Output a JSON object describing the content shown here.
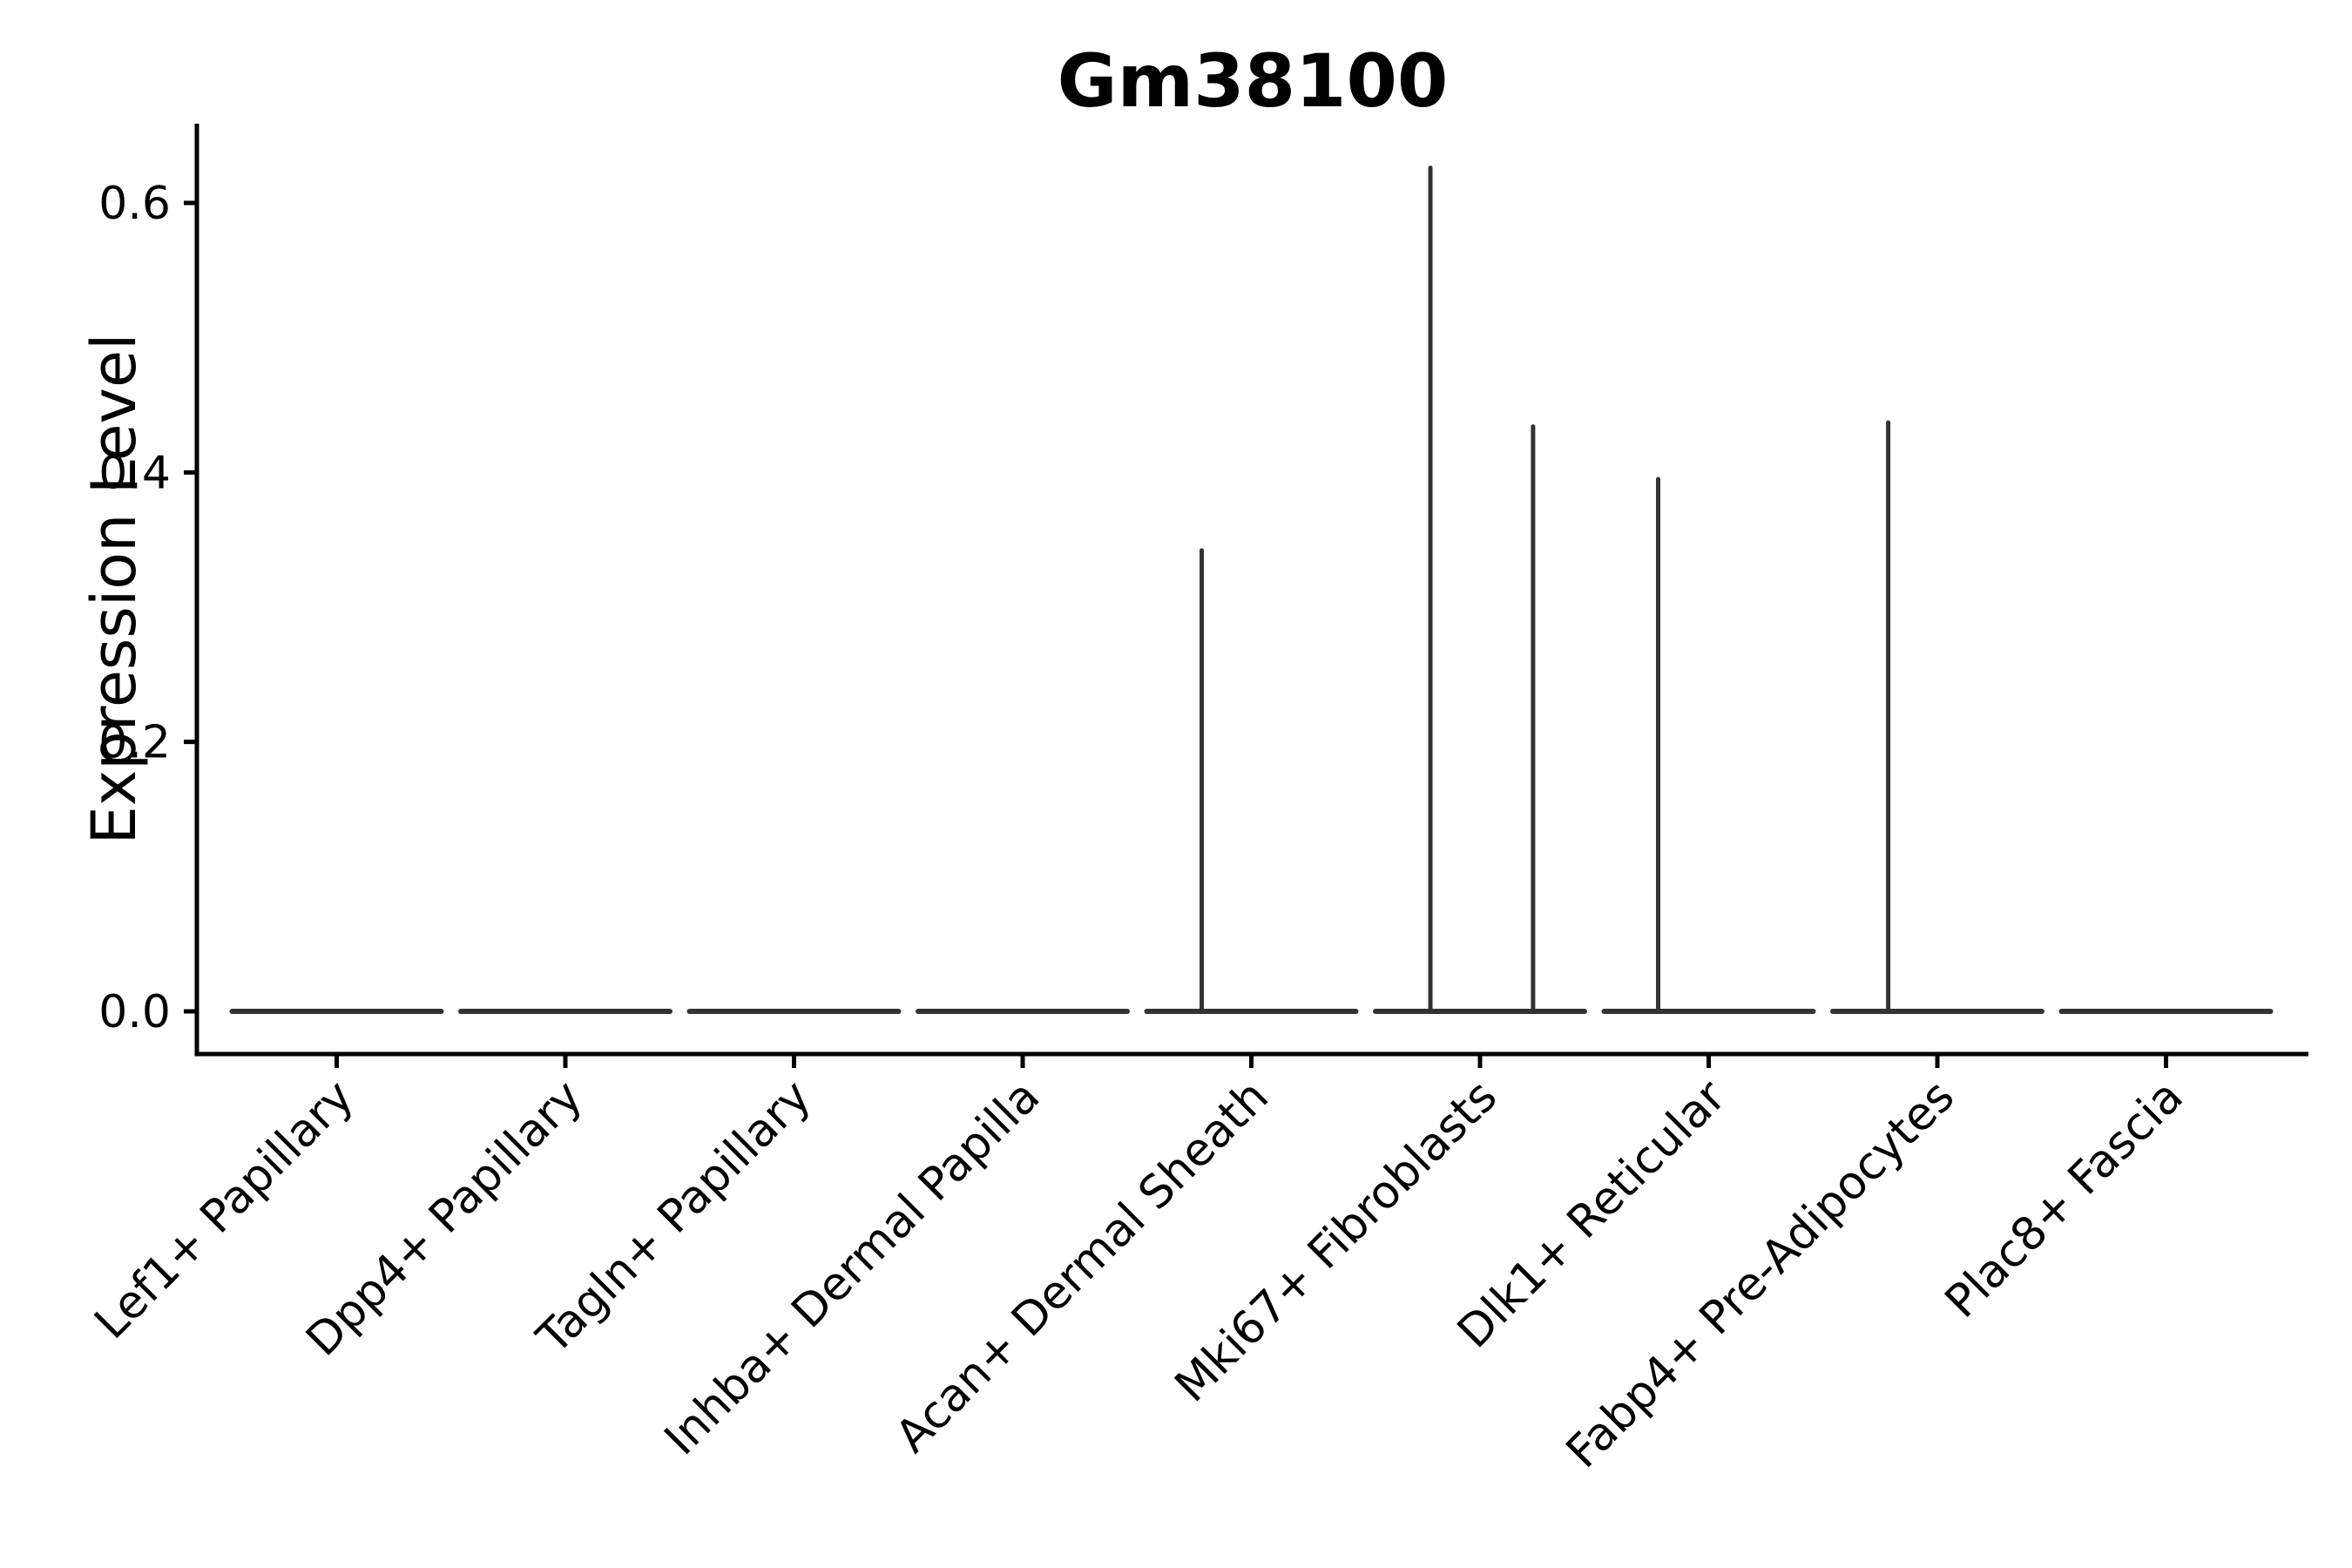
{
  "chart_data": {
    "type": "violin",
    "title": "Gm38100",
    "ylabel": "Expression Level",
    "xlabel": "",
    "grid": false,
    "legend": "none",
    "background": "#ffffff",
    "colors": {
      "axis": "#000000",
      "violin_stroke": "#333333",
      "text": "#000000"
    },
    "ylim": [
      -0.032,
      0.659
    ],
    "yticks": [
      0.0,
      0.2,
      0.4,
      0.6
    ],
    "ytick_labels": [
      "0.0",
      "0.2",
      "0.4",
      "0.6"
    ],
    "categories": [
      "Lef1+ Papillary",
      "Dpp4+ Papillary",
      "Tagln+ Papillary",
      "Inhba+ Dermal Papilla",
      "Acan+ Dermal Sheath",
      "Mki67+ Fibroblasts",
      "Dlk1+ Reticular",
      "Fabp4+ Pre-Adipocytes",
      "Plac8+ Fascia"
    ],
    "violins": [
      {
        "category": "Lef1+ Papillary",
        "baseline_value": 0.0,
        "spikes": []
      },
      {
        "category": "Dpp4+ Papillary",
        "baseline_value": 0.0,
        "spikes": []
      },
      {
        "category": "Tagln+ Papillary",
        "baseline_value": 0.0,
        "spikes": []
      },
      {
        "category": "Inhba+ Dermal Papilla",
        "baseline_value": 0.0,
        "spikes": []
      },
      {
        "category": "Acan+ Dermal Sheath",
        "baseline_value": 0.0,
        "spikes": [
          {
            "offset": -0.217,
            "value": 0.344
          }
        ]
      },
      {
        "category": "Mki67+ Fibroblasts",
        "baseline_value": 0.0,
        "spikes": [
          {
            "offset": -0.217,
            "value": 0.628
          },
          {
            "offset": 0.232,
            "value": 0.436
          }
        ]
      },
      {
        "category": "Dlk1+ Reticular",
        "baseline_value": 0.0,
        "spikes": [
          {
            "offset": -0.221,
            "value": 0.397
          }
        ]
      },
      {
        "category": "Fabp4+ Pre-Adipocytes",
        "baseline_value": 0.0,
        "spikes": [
          {
            "offset": -0.215,
            "value": 0.439
          }
        ]
      },
      {
        "category": "Plac8+ Fascia",
        "baseline_value": 0.0,
        "spikes": []
      }
    ]
  }
}
